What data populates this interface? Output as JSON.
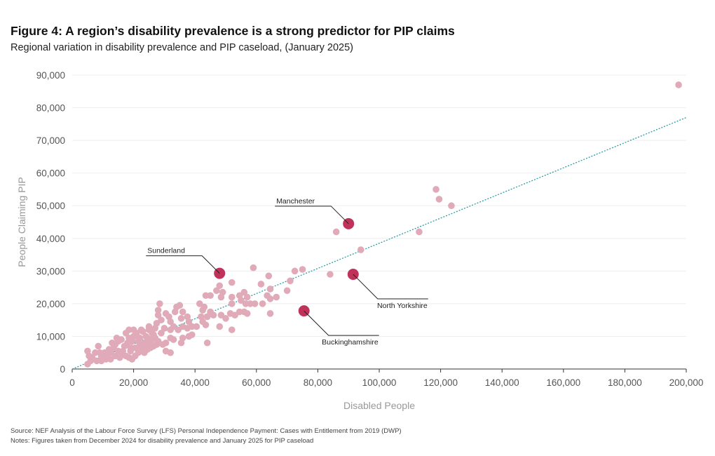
{
  "header": {
    "title": "Figure 4: A region’s disability prevalence is a strong predictor for PIP claims",
    "subtitle": "Regional variation in disability prevalence and PIP caseload, (January 2025)"
  },
  "footer": {
    "source": "Source: NEF Analysis of the Labour Force Survey (LFS) Personal Independence Payment: Cases with Entitlement from 2019 (DWP)",
    "notes": "Notes: Figures taken from December 2024 for disability prevalence and January 2025 for PIP caseload"
  },
  "colors": {
    "point": "#e0aab8",
    "highlight": "#c0325a",
    "trendline": "#2a9da6",
    "grid": "#eeeeee"
  },
  "chart_data": {
    "type": "scatter",
    "title": "Figure 4: A region’s disability prevalence is a strong predictor for PIP claims",
    "subtitle": "Regional variation in disability prevalence and PIP caseload, (January 2025)",
    "xlabel": "Disabled People",
    "ylabel": "People Claiming PIP",
    "xlim": [
      0,
      200000
    ],
    "ylim": [
      0,
      90000
    ],
    "xticks": [
      0,
      20000,
      40000,
      60000,
      80000,
      100000,
      120000,
      140000,
      160000,
      180000,
      200000
    ],
    "xtick_labels": [
      "0",
      "20,000",
      "40,000",
      "60,000",
      "80,000",
      "100,000",
      "120,000",
      "140,000",
      "160,000",
      "180,000",
      "200,000"
    ],
    "yticks": [
      0,
      10000,
      20000,
      30000,
      40000,
      50000,
      60000,
      70000,
      80000,
      90000
    ],
    "ytick_labels": [
      "0",
      "10,000",
      "20,000",
      "30,000",
      "40,000",
      "50,000",
      "60,000",
      "70,000",
      "80,000",
      "90,000"
    ],
    "grid": true,
    "trendline": {
      "x": [
        0,
        200000
      ],
      "y": [
        0,
        77000
      ]
    },
    "highlighted": [
      {
        "name": "Manchester",
        "x": 90000,
        "y": 44500,
        "label_side": "top-left"
      },
      {
        "name": "Sunderland",
        "x": 48000,
        "y": 29300,
        "label_side": "top-left"
      },
      {
        "name": "North Yorkshire",
        "x": 91500,
        "y": 29000,
        "label_side": "bottom-right"
      },
      {
        "name": "Buckinghamshire",
        "x": 75500,
        "y": 17800,
        "label_side": "bottom-right"
      }
    ],
    "points": [
      [
        197500,
        87000
      ],
      [
        118500,
        55000
      ],
      [
        119500,
        52000
      ],
      [
        123500,
        50000
      ],
      [
        113000,
        42000
      ],
      [
        86000,
        42000
      ],
      [
        94000,
        36500
      ],
      [
        84000,
        29000
      ],
      [
        75000,
        30500
      ],
      [
        72500,
        30000
      ],
      [
        71000,
        27000
      ],
      [
        70000,
        24000
      ],
      [
        64000,
        28500
      ],
      [
        59000,
        31000
      ],
      [
        61500,
        26000
      ],
      [
        64500,
        24500
      ],
      [
        63500,
        22500
      ],
      [
        66500,
        22000
      ],
      [
        64500,
        21500
      ],
      [
        62000,
        20000
      ],
      [
        64500,
        17000
      ],
      [
        56000,
        23500
      ],
      [
        57000,
        22000
      ],
      [
        54500,
        22500
      ],
      [
        52000,
        26500
      ],
      [
        55000,
        21000
      ],
      [
        52000,
        22000
      ],
      [
        58000,
        20000
      ],
      [
        59500,
        20000
      ],
      [
        56500,
        20000
      ],
      [
        52000,
        20000
      ],
      [
        48500,
        22000
      ],
      [
        47000,
        24000
      ],
      [
        48000,
        25500
      ],
      [
        45000,
        22500
      ],
      [
        43500,
        22500
      ],
      [
        49000,
        23500
      ],
      [
        42500,
        18000
      ],
      [
        43000,
        19000
      ],
      [
        41500,
        20000
      ],
      [
        45000,
        17500
      ],
      [
        46000,
        16500
      ],
      [
        48500,
        16500
      ],
      [
        50000,
        15500
      ],
      [
        51500,
        17000
      ],
      [
        53000,
        16500
      ],
      [
        54500,
        17500
      ],
      [
        56000,
        17500
      ],
      [
        57000,
        17000
      ],
      [
        42000,
        16000
      ],
      [
        44000,
        16000
      ],
      [
        42500,
        14500
      ],
      [
        43500,
        13500
      ],
      [
        40500,
        13000
      ],
      [
        48000,
        13000
      ],
      [
        52000,
        12000
      ],
      [
        39000,
        13000
      ],
      [
        38000,
        14500
      ],
      [
        37500,
        16000
      ],
      [
        36000,
        17500
      ],
      [
        35000,
        19500
      ],
      [
        34000,
        19000
      ],
      [
        33500,
        17500
      ],
      [
        35500,
        15500
      ],
      [
        30500,
        17000
      ],
      [
        31500,
        16000
      ],
      [
        28500,
        20000
      ],
      [
        28000,
        18000
      ],
      [
        29000,
        15000
      ],
      [
        32000,
        14500
      ],
      [
        36000,
        13000
      ],
      [
        37500,
        12500
      ],
      [
        33000,
        13000
      ],
      [
        32000,
        12000
      ],
      [
        34500,
        12000
      ],
      [
        30000,
        12500
      ],
      [
        29000,
        11000
      ],
      [
        27000,
        12500
      ],
      [
        26000,
        11000
      ],
      [
        25000,
        13000
      ],
      [
        27500,
        14000
      ],
      [
        28000,
        16500
      ],
      [
        38000,
        10000
      ],
      [
        39000,
        10500
      ],
      [
        36000,
        9500
      ],
      [
        35500,
        8000
      ],
      [
        33000,
        9000
      ],
      [
        32000,
        9500
      ],
      [
        30500,
        8000
      ],
      [
        29500,
        7500
      ],
      [
        28000,
        8500
      ],
      [
        27000,
        9500
      ],
      [
        26000,
        9000
      ],
      [
        25500,
        8000
      ],
      [
        24500,
        9500
      ],
      [
        23000,
        11500
      ],
      [
        22500,
        12000
      ],
      [
        21000,
        11000
      ],
      [
        20000,
        10000
      ],
      [
        18500,
        9500
      ],
      [
        17500,
        11000
      ],
      [
        18000,
        8000
      ],
      [
        19500,
        8500
      ],
      [
        21500,
        8500
      ],
      [
        23500,
        8000
      ],
      [
        24000,
        7500
      ],
      [
        22000,
        7000
      ],
      [
        20500,
        6500
      ],
      [
        19000,
        6500
      ],
      [
        17000,
        7000
      ],
      [
        16000,
        9000
      ],
      [
        15000,
        8500
      ],
      [
        14500,
        9500
      ],
      [
        14000,
        7500
      ],
      [
        13500,
        6500
      ],
      [
        13000,
        8000
      ],
      [
        12500,
        5000
      ],
      [
        11500,
        4500
      ],
      [
        12000,
        6000
      ],
      [
        10500,
        5000
      ],
      [
        9500,
        4000
      ],
      [
        9000,
        5000
      ],
      [
        8500,
        7000
      ],
      [
        7500,
        5000
      ],
      [
        6500,
        3500
      ],
      [
        6000,
        2500
      ],
      [
        5000,
        1500
      ],
      [
        5500,
        4000
      ],
      [
        5000,
        5500
      ],
      [
        8000,
        2500
      ],
      [
        9500,
        2500
      ],
      [
        11000,
        3000
      ],
      [
        12500,
        3000
      ],
      [
        14000,
        4000
      ],
      [
        15500,
        3500
      ],
      [
        16500,
        4500
      ],
      [
        17500,
        4000
      ],
      [
        18500,
        3500
      ],
      [
        19500,
        3000
      ],
      [
        20500,
        4000
      ],
      [
        21500,
        5000
      ],
      [
        22500,
        5500
      ],
      [
        23500,
        5000
      ],
      [
        24500,
        6000
      ],
      [
        25500,
        6500
      ],
      [
        26500,
        7000
      ],
      [
        27500,
        7500
      ],
      [
        16500,
        5500
      ],
      [
        15000,
        5500
      ],
      [
        19000,
        5500
      ],
      [
        30500,
        5500
      ],
      [
        32000,
        5000
      ],
      [
        44000,
        8000
      ],
      [
        24000,
        10000
      ],
      [
        25000,
        12000
      ],
      [
        22000,
        9500
      ],
      [
        20000,
        12000
      ],
      [
        18500,
        12000
      ],
      [
        23000,
        6500
      ],
      [
        26500,
        10500
      ]
    ]
  }
}
